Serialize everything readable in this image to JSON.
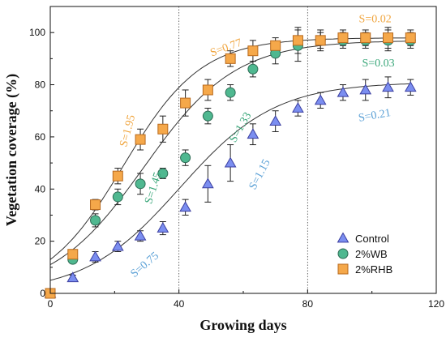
{
  "chart_data": {
    "type": "scatter",
    "xlabel": "Growing days",
    "ylabel": "Vegetation coverage (%)",
    "xlim": [
      0,
      120
    ],
    "ylim": [
      0,
      110
    ],
    "xticks": [
      "0",
      "40",
      "80",
      "120"
    ],
    "yticks": [
      "0",
      "20",
      "40",
      "60",
      "80",
      "100"
    ],
    "vertical_lines": [
      40,
      80
    ],
    "legend_position": "bottom-right",
    "series": [
      {
        "name": "Control",
        "marker": "triangle",
        "color": "#7b8ef0",
        "x": [
          0,
          7,
          14,
          21,
          28,
          35,
          42,
          49,
          56,
          63,
          70,
          77,
          84,
          91,
          98,
          105,
          112
        ],
        "y": [
          0,
          6,
          14,
          18,
          22,
          25,
          33,
          42,
          50,
          61,
          66,
          71,
          74,
          77,
          78,
          79,
          79
        ],
        "err": [
          0.5,
          1,
          2,
          2,
          2,
          2.5,
          3,
          7,
          7,
          4,
          4,
          3,
          3,
          3,
          4,
          4,
          3
        ],
        "fit": {
          "K": 81,
          "P0": 5,
          "r": 0.0675
        }
      },
      {
        "name": "2%WB",
        "marker": "circle",
        "color": "#4fb890",
        "x": [
          0,
          7,
          14,
          21,
          28,
          35,
          42,
          49,
          56,
          63,
          70,
          77,
          84,
          91,
          98,
          105,
          112
        ],
        "y": [
          0,
          13,
          28,
          37,
          42,
          46,
          52,
          68,
          77,
          86,
          92,
          95,
          97,
          97,
          97,
          97,
          97
        ],
        "err": [
          0.5,
          1,
          2.5,
          3,
          4,
          2,
          3,
          3,
          3,
          3,
          4,
          6,
          4,
          3,
          3,
          4,
          3
        ],
        "fit": {
          "K": 97,
          "P0": 11,
          "r": 0.0705
        }
      },
      {
        "name": "2%RHB",
        "marker": "square",
        "color": "#f5a84a",
        "x": [
          0,
          7,
          14,
          21,
          28,
          35,
          42,
          49,
          56,
          63,
          70,
          77,
          84,
          91,
          98,
          105,
          112
        ],
        "y": [
          0,
          15,
          34,
          45,
          59,
          63,
          73,
          78,
          90,
          93,
          95,
          97,
          97,
          98,
          98,
          98,
          98
        ],
        "err": [
          0.5,
          1,
          2,
          3,
          4,
          5,
          5,
          4,
          3,
          4,
          3,
          5,
          3,
          3,
          3,
          4,
          3
        ],
        "fit": {
          "K": 98,
          "P0": 13,
          "r": 0.0825
        }
      }
    ],
    "annotations": [
      {
        "text": "S=1.95",
        "x": 25,
        "y": 62,
        "rotate": -75,
        "color": "#f0a43c"
      },
      {
        "text": "S=0.77",
        "x": 55,
        "y": 93,
        "rotate": -20,
        "color": "#f0a43c"
      },
      {
        "text": "S=0.02",
        "x": 101,
        "y": 104,
        "rotate": 0,
        "color": "#f0a43c"
      },
      {
        "text": "S=1.45",
        "x": 33,
        "y": 40,
        "rotate": -72,
        "color": "#3aa77a"
      },
      {
        "text": "S=1.33",
        "x": 60,
        "y": 63,
        "rotate": -60,
        "color": "#3aa77a"
      },
      {
        "text": "S=0.03",
        "x": 102,
        "y": 87,
        "rotate": 0,
        "color": "#3aa77a"
      },
      {
        "text": "S=0.75",
        "x": 30,
        "y": 10,
        "rotate": -40,
        "color": "#5aa0d6"
      },
      {
        "text": "S=1.15",
        "x": 66,
        "y": 45,
        "rotate": -62,
        "color": "#5aa0d6"
      },
      {
        "text": "S=0.21",
        "x": 101,
        "y": 67,
        "rotate": -10,
        "color": "#5aa0d6"
      }
    ]
  }
}
